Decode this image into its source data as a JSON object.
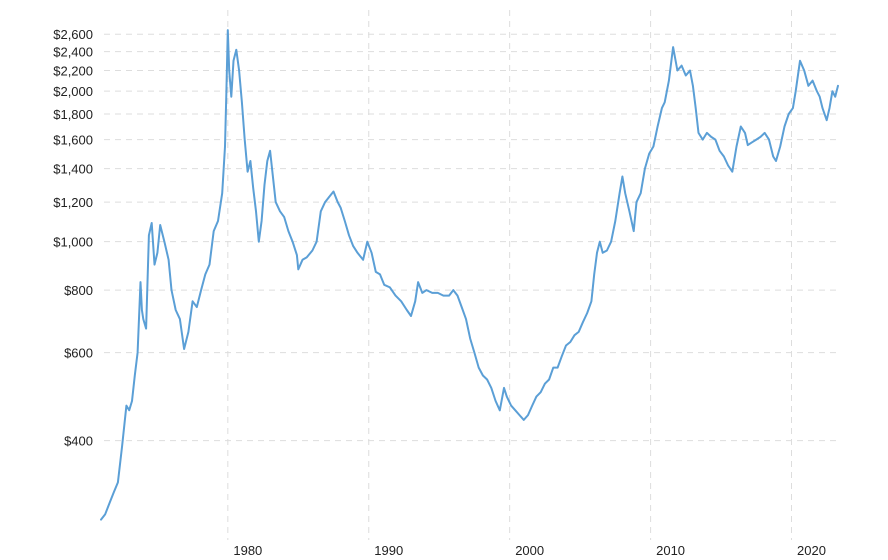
{
  "chart_data": {
    "type": "line",
    "title": "",
    "xlabel": "",
    "ylabel": "",
    "y_scale": "log",
    "ylim": [
      275,
      2700
    ],
    "xlim": [
      1971,
      2023.3
    ],
    "grid": true,
    "legend": "none",
    "colors": {
      "line": "#5b9fd6",
      "grid": "#dddddd",
      "text": "#222222"
    },
    "x_ticks": [
      {
        "value": 1980,
        "label": "1980"
      },
      {
        "value": 1990,
        "label": "1990"
      },
      {
        "value": 2000,
        "label": "2000"
      },
      {
        "value": 2010,
        "label": "2010"
      },
      {
        "value": 2020,
        "label": "2020"
      }
    ],
    "y_ticks": [
      {
        "value": 400,
        "label": "$400"
      },
      {
        "value": 600,
        "label": "$600"
      },
      {
        "value": 800,
        "label": "$800"
      },
      {
        "value": 1000,
        "label": "$1,000"
      },
      {
        "value": 1200,
        "label": "$1,200"
      },
      {
        "value": 1400,
        "label": "$1,400"
      },
      {
        "value": 1600,
        "label": "$1,600"
      },
      {
        "value": 1800,
        "label": "$1,800"
      },
      {
        "value": 2000,
        "label": "$2,000"
      },
      {
        "value": 2200,
        "label": "$2,200"
      },
      {
        "value": 2400,
        "label": "$2,400"
      },
      {
        "value": 2600,
        "label": "$2,600"
      }
    ],
    "series": [
      {
        "points": [
          [
            1971.0,
            278
          ],
          [
            1971.3,
            285
          ],
          [
            1971.6,
            300
          ],
          [
            1971.9,
            315
          ],
          [
            1972.2,
            330
          ],
          [
            1972.5,
            390
          ],
          [
            1972.8,
            470
          ],
          [
            1973.0,
            460
          ],
          [
            1973.2,
            480
          ],
          [
            1973.4,
            540
          ],
          [
            1973.6,
            600
          ],
          [
            1973.8,
            830
          ],
          [
            1973.9,
            730
          ],
          [
            1974.0,
            700
          ],
          [
            1974.2,
            670
          ],
          [
            1974.4,
            1030
          ],
          [
            1974.6,
            1090
          ],
          [
            1974.8,
            900
          ],
          [
            1975.0,
            950
          ],
          [
            1975.2,
            1080
          ],
          [
            1975.5,
            1000
          ],
          [
            1975.8,
            920
          ],
          [
            1976.0,
            800
          ],
          [
            1976.3,
            730
          ],
          [
            1976.6,
            700
          ],
          [
            1976.9,
            610
          ],
          [
            1977.2,
            660
          ],
          [
            1977.5,
            760
          ],
          [
            1977.8,
            740
          ],
          [
            1978.1,
            800
          ],
          [
            1978.4,
            860
          ],
          [
            1978.7,
            900
          ],
          [
            1979.0,
            1050
          ],
          [
            1979.3,
            1100
          ],
          [
            1979.6,
            1250
          ],
          [
            1979.8,
            1550
          ],
          [
            1979.9,
            2000
          ],
          [
            1980.0,
            2650
          ],
          [
            1980.1,
            2200
          ],
          [
            1980.25,
            1950
          ],
          [
            1980.4,
            2300
          ],
          [
            1980.6,
            2420
          ],
          [
            1980.8,
            2200
          ],
          [
            1981.0,
            1900
          ],
          [
            1981.2,
            1600
          ],
          [
            1981.4,
            1380
          ],
          [
            1981.6,
            1450
          ],
          [
            1981.8,
            1280
          ],
          [
            1982.0,
            1150
          ],
          [
            1982.2,
            1000
          ],
          [
            1982.4,
            1100
          ],
          [
            1982.6,
            1300
          ],
          [
            1982.8,
            1450
          ],
          [
            1983.0,
            1520
          ],
          [
            1983.2,
            1350
          ],
          [
            1983.4,
            1200
          ],
          [
            1983.7,
            1150
          ],
          [
            1984.0,
            1120
          ],
          [
            1984.3,
            1050
          ],
          [
            1984.6,
            1000
          ],
          [
            1984.9,
            940
          ],
          [
            1985.0,
            880
          ],
          [
            1985.3,
            920
          ],
          [
            1985.6,
            930
          ],
          [
            1986.0,
            960
          ],
          [
            1986.3,
            1000
          ],
          [
            1986.6,
            1150
          ],
          [
            1986.9,
            1200
          ],
          [
            1987.2,
            1230
          ],
          [
            1987.5,
            1260
          ],
          [
            1987.8,
            1200
          ],
          [
            1988.0,
            1170
          ],
          [
            1988.3,
            1100
          ],
          [
            1988.6,
            1030
          ],
          [
            1988.9,
            980
          ],
          [
            1989.2,
            950
          ],
          [
            1989.6,
            920
          ],
          [
            1989.9,
            1000
          ],
          [
            1990.2,
            950
          ],
          [
            1990.5,
            870
          ],
          [
            1990.8,
            860
          ],
          [
            1991.1,
            820
          ],
          [
            1991.5,
            810
          ],
          [
            1991.9,
            780
          ],
          [
            1992.3,
            760
          ],
          [
            1992.7,
            730
          ],
          [
            1993.0,
            710
          ],
          [
            1993.3,
            760
          ],
          [
            1993.5,
            830
          ],
          [
            1993.8,
            790
          ],
          [
            1994.1,
            800
          ],
          [
            1994.5,
            790
          ],
          [
            1994.9,
            790
          ],
          [
            1995.3,
            780
          ],
          [
            1995.7,
            780
          ],
          [
            1996.0,
            800
          ],
          [
            1996.3,
            780
          ],
          [
            1996.6,
            740
          ],
          [
            1996.9,
            700
          ],
          [
            1997.2,
            640
          ],
          [
            1997.5,
            600
          ],
          [
            1997.8,
            560
          ],
          [
            1998.1,
            540
          ],
          [
            1998.4,
            530
          ],
          [
            1998.7,
            510
          ],
          [
            1999.0,
            480
          ],
          [
            1999.3,
            460
          ],
          [
            1999.6,
            510
          ],
          [
            1999.8,
            490
          ],
          [
            2000.1,
            470
          ],
          [
            2000.4,
            460
          ],
          [
            2000.7,
            450
          ],
          [
            2001.0,
            440
          ],
          [
            2001.3,
            450
          ],
          [
            2001.6,
            470
          ],
          [
            2001.9,
            490
          ],
          [
            2002.2,
            500
          ],
          [
            2002.5,
            520
          ],
          [
            2002.8,
            530
          ],
          [
            2003.1,
            560
          ],
          [
            2003.4,
            560
          ],
          [
            2003.7,
            590
          ],
          [
            2004.0,
            620
          ],
          [
            2004.3,
            630
          ],
          [
            2004.6,
            650
          ],
          [
            2004.9,
            660
          ],
          [
            2005.2,
            690
          ],
          [
            2005.5,
            720
          ],
          [
            2005.8,
            760
          ],
          [
            2006.0,
            860
          ],
          [
            2006.2,
            950
          ],
          [
            2006.4,
            1000
          ],
          [
            2006.6,
            950
          ],
          [
            2006.9,
            960
          ],
          [
            2007.2,
            1000
          ],
          [
            2007.5,
            1100
          ],
          [
            2007.8,
            1250
          ],
          [
            2008.0,
            1350
          ],
          [
            2008.2,
            1250
          ],
          [
            2008.5,
            1150
          ],
          [
            2008.8,
            1050
          ],
          [
            2009.0,
            1200
          ],
          [
            2009.3,
            1250
          ],
          [
            2009.6,
            1400
          ],
          [
            2009.9,
            1500
          ],
          [
            2010.2,
            1550
          ],
          [
            2010.5,
            1700
          ],
          [
            2010.8,
            1850
          ],
          [
            2011.0,
            1900
          ],
          [
            2011.3,
            2100
          ],
          [
            2011.6,
            2450
          ],
          [
            2011.9,
            2200
          ],
          [
            2012.2,
            2250
          ],
          [
            2012.5,
            2150
          ],
          [
            2012.8,
            2200
          ],
          [
            2013.0,
            2050
          ],
          [
            2013.2,
            1850
          ],
          [
            2013.4,
            1650
          ],
          [
            2013.7,
            1600
          ],
          [
            2014.0,
            1650
          ],
          [
            2014.3,
            1620
          ],
          [
            2014.6,
            1600
          ],
          [
            2014.9,
            1520
          ],
          [
            2015.2,
            1480
          ],
          [
            2015.5,
            1420
          ],
          [
            2015.8,
            1380
          ],
          [
            2016.1,
            1550
          ],
          [
            2016.4,
            1700
          ],
          [
            2016.7,
            1650
          ],
          [
            2016.9,
            1560
          ],
          [
            2017.2,
            1580
          ],
          [
            2017.5,
            1600
          ],
          [
            2017.8,
            1620
          ],
          [
            2018.1,
            1650
          ],
          [
            2018.4,
            1600
          ],
          [
            2018.7,
            1480
          ],
          [
            2018.9,
            1450
          ],
          [
            2019.2,
            1550
          ],
          [
            2019.5,
            1700
          ],
          [
            2019.8,
            1800
          ],
          [
            2020.1,
            1850
          ],
          [
            2020.3,
            2000
          ],
          [
            2020.6,
            2300
          ],
          [
            2020.9,
            2200
          ],
          [
            2021.2,
            2050
          ],
          [
            2021.5,
            2100
          ],
          [
            2021.8,
            2000
          ],
          [
            2022.0,
            1950
          ],
          [
            2022.2,
            1850
          ],
          [
            2022.5,
            1750
          ],
          [
            2022.7,
            1850
          ],
          [
            2022.9,
            2000
          ],
          [
            2023.1,
            1950
          ],
          [
            2023.3,
            2050
          ]
        ]
      }
    ]
  }
}
